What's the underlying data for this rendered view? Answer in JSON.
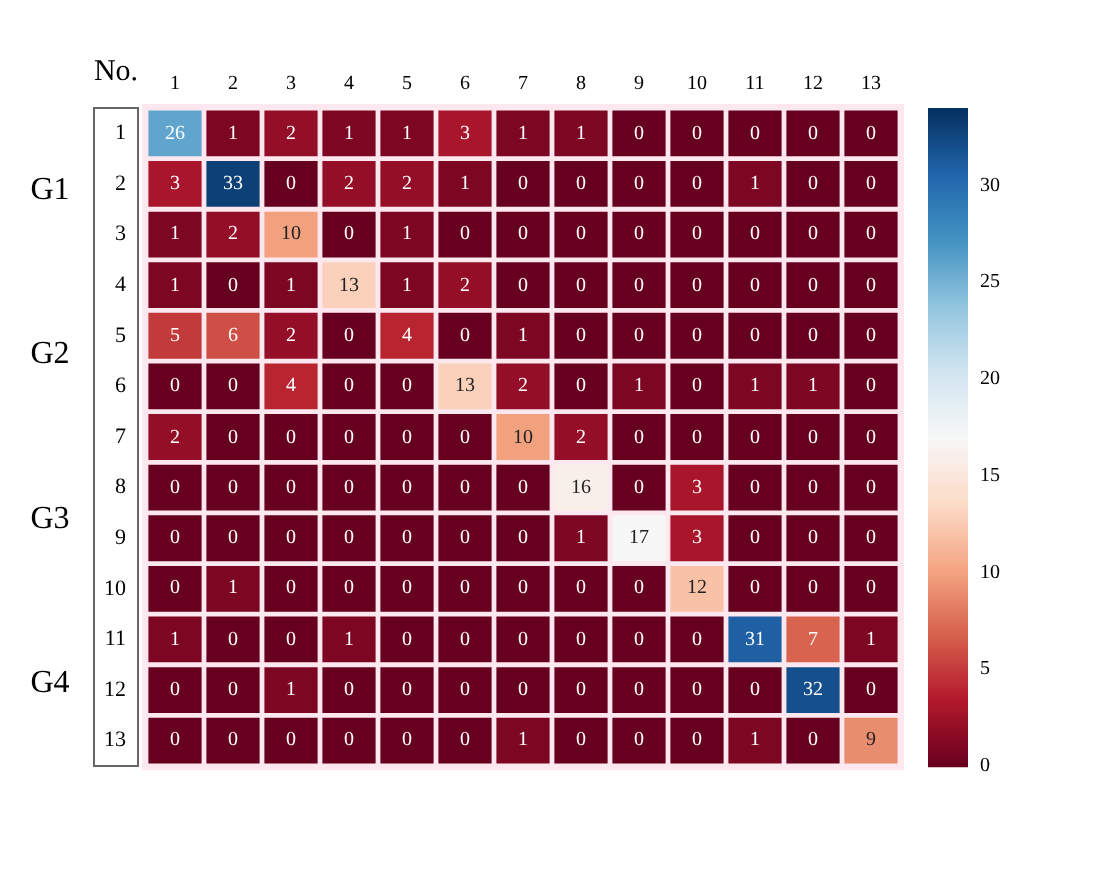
{
  "chart_data": {
    "type": "heatmap",
    "ylabel": "No.",
    "categories": [
      "1",
      "2",
      "3",
      "4",
      "5",
      "6",
      "7",
      "8",
      "9",
      "10",
      "11",
      "12",
      "13"
    ],
    "y_categories": [
      "1",
      "2",
      "3",
      "4",
      "5",
      "6",
      "7",
      "8",
      "9",
      "10",
      "11",
      "12",
      "13"
    ],
    "cells": [
      [
        26,
        1,
        2,
        1,
        1,
        3,
        1,
        1,
        0,
        0,
        0,
        0,
        0
      ],
      [
        3,
        33,
        0,
        2,
        2,
        1,
        0,
        0,
        0,
        0,
        1,
        0,
        0
      ],
      [
        1,
        2,
        10,
        0,
        1,
        0,
        0,
        0,
        0,
        0,
        0,
        0,
        0
      ],
      [
        1,
        0,
        1,
        13,
        1,
        2,
        0,
        0,
        0,
        0,
        0,
        0,
        0
      ],
      [
        5,
        6,
        2,
        0,
        4,
        0,
        1,
        0,
        0,
        0,
        0,
        0,
        0
      ],
      [
        0,
        0,
        4,
        0,
        0,
        13,
        2,
        0,
        1,
        0,
        1,
        1,
        0
      ],
      [
        2,
        0,
        0,
        0,
        0,
        0,
        10,
        2,
        0,
        0,
        0,
        0,
        0
      ],
      [
        0,
        0,
        0,
        0,
        0,
        0,
        0,
        16,
        0,
        3,
        0,
        0,
        0
      ],
      [
        0,
        0,
        0,
        0,
        0,
        0,
        0,
        1,
        17,
        3,
        0,
        0,
        0
      ],
      [
        0,
        1,
        0,
        0,
        0,
        0,
        0,
        0,
        0,
        12,
        0,
        0,
        0
      ],
      [
        1,
        0,
        0,
        1,
        0,
        0,
        0,
        0,
        0,
        0,
        31,
        7,
        1
      ],
      [
        0,
        0,
        1,
        0,
        0,
        0,
        0,
        0,
        0,
        0,
        0,
        32,
        0
      ],
      [
        0,
        0,
        0,
        0,
        0,
        0,
        1,
        0,
        0,
        0,
        1,
        0,
        9
      ]
    ],
    "clim": [
      0,
      34
    ],
    "cticks": [
      0,
      5,
      10,
      15,
      20,
      25,
      30
    ],
    "data_labels": true,
    "annotations": [
      "G1",
      "G2",
      "G3",
      "G4"
    ]
  }
}
